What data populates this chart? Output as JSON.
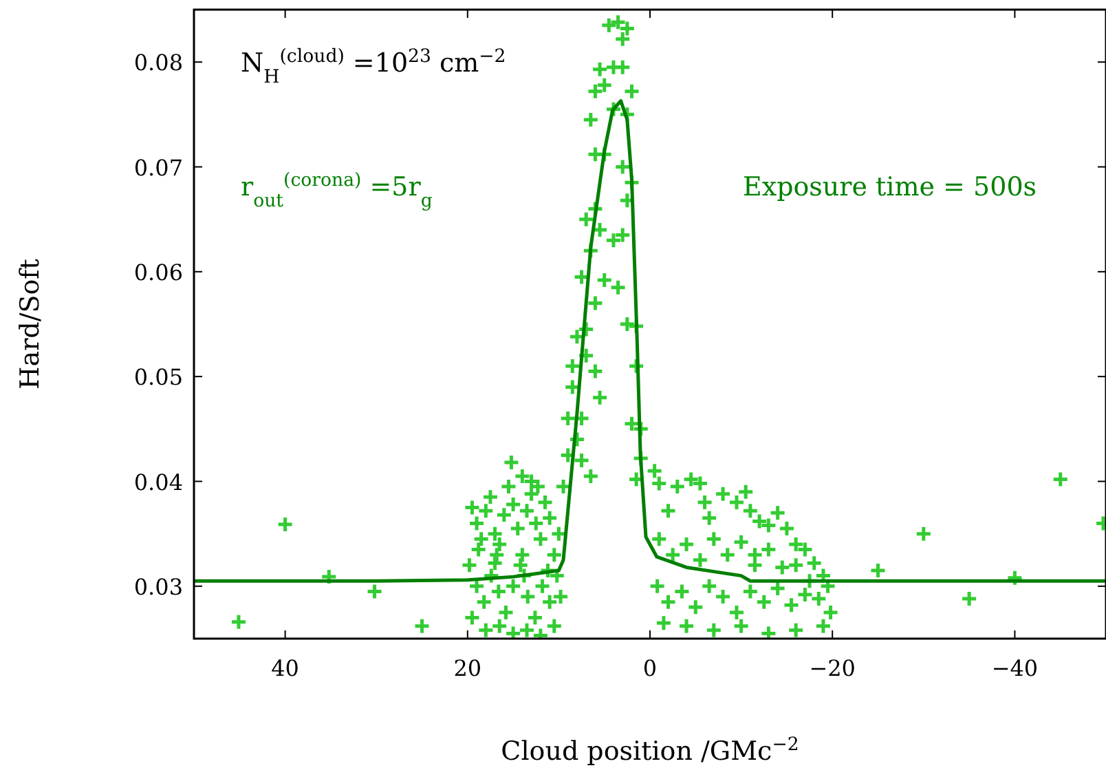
{
  "chart_data": {
    "type": "scatter",
    "xlabel": "Cloud position /GMc$^{−2}$",
    "ylabel": "Hard/Soft",
    "xlim": [
      50,
      -50
    ],
    "xticks": [
      40,
      20,
      0,
      {
        "value": -20,
        "label": "−20"
      },
      {
        "value": -40,
        "label": "−40"
      }
    ],
    "ylim": [
      0.025,
      0.085
    ],
    "yticks": [
      0.03,
      0.04,
      0.05,
      0.06,
      0.07,
      0.08
    ],
    "grid": false,
    "annotations": [
      "N$_{H}$$^{(cloud)}$ =10$^{23}$  cm$^{−2}$",
      "r$_{out}$$^{(corona)}$ =5r$_{g}$",
      "Exposure time = 500s"
    ],
    "series": [
      {
        "marker": "cross",
        "color": "#33cc33",
        "x": [
          45.1,
          40,
          35.2,
          30.2,
          25,
          -25,
          -30,
          -35,
          -40,
          -45,
          -49.7,
          4.5,
          3.5,
          2.5,
          3,
          5.5,
          4,
          3,
          5,
          6,
          2,
          4,
          2.5,
          6.5,
          5,
          6,
          3,
          2,
          2.5,
          7,
          6,
          5.5,
          4,
          3,
          6.5,
          5,
          7.5,
          3.5,
          6,
          2.5,
          7,
          8,
          1.5,
          7,
          8.5,
          1.5,
          6,
          8.5,
          5.5,
          9,
          7.5,
          2,
          1,
          8,
          9,
          7.5,
          1,
          6.5,
          1.5,
          9.5,
          19.5,
          19,
          18.5,
          18,
          17.5,
          17,
          16.5,
          16,
          15.5,
          15,
          14.5,
          14,
          13.5,
          13,
          12.5,
          12,
          11.5,
          11,
          10.5,
          10,
          19.8,
          19,
          18.2,
          17.4,
          16.6,
          15.8,
          15,
          14.2,
          13.4,
          12.6,
          11.8,
          11,
          10.2,
          19.5,
          18,
          16.5,
          15,
          13.5,
          12,
          10.5,
          17,
          14,
          15.2,
          13,
          12.3,
          16.8,
          18.8,
          11.2,
          13.8,
          9.8,
          -0.5,
          -1,
          -2,
          -3,
          -4.5,
          -5.5,
          -6.5,
          -8,
          -9.5,
          -10.5,
          -11,
          -12,
          -13,
          -14,
          -15,
          -16,
          -17,
          -18,
          -19,
          -19.5,
          -1,
          -2.5,
          -4,
          -5.5,
          -7,
          -8.5,
          -10,
          -11.5,
          -13,
          -14.5,
          -16,
          -17.5,
          -0.8,
          -2,
          -3.5,
          -5,
          -6.5,
          -8,
          -9.5,
          -11,
          -12.5,
          -14,
          -15.5,
          -17,
          -18.5,
          -19.8,
          -1.5,
          -4,
          -7,
          -10,
          -13,
          -16,
          -19,
          -6,
          -11.5
        ],
        "values": [
          0.0266,
          0.0359,
          0.0309,
          0.0295,
          0.0262,
          0.0315,
          0.035,
          0.0288,
          0.0308,
          0.0402,
          0.036,
          0.0835,
          0.0838,
          0.0832,
          0.0822,
          0.0793,
          0.0795,
          0.0795,
          0.0778,
          0.0772,
          0.0772,
          0.0755,
          0.075,
          0.0745,
          0.0712,
          0.0712,
          0.07,
          0.0685,
          0.0668,
          0.065,
          0.066,
          0.064,
          0.063,
          0.0635,
          0.062,
          0.0592,
          0.0595,
          0.0585,
          0.057,
          0.055,
          0.0545,
          0.0538,
          0.0548,
          0.052,
          0.051,
          0.051,
          0.0505,
          0.049,
          0.048,
          0.046,
          0.046,
          0.0455,
          0.045,
          0.044,
          0.0425,
          0.042,
          0.0422,
          0.0405,
          0.0402,
          0.0395,
          0.0375,
          0.036,
          0.0345,
          0.0372,
          0.0385,
          0.035,
          0.034,
          0.0368,
          0.0395,
          0.0378,
          0.0355,
          0.033,
          0.0372,
          0.0388,
          0.036,
          0.0345,
          0.038,
          0.0365,
          0.033,
          0.035,
          0.032,
          0.03,
          0.0285,
          0.031,
          0.0295,
          0.0275,
          0.03,
          0.032,
          0.029,
          0.027,
          0.03,
          0.0285,
          0.031,
          0.027,
          0.0258,
          0.0262,
          0.0255,
          0.0258,
          0.0253,
          0.0262,
          0.0322,
          0.0405,
          0.0418,
          0.04,
          0.0395,
          0.033,
          0.0335,
          0.0315,
          0.031,
          0.029,
          0.041,
          0.0398,
          0.0372,
          0.0395,
          0.0402,
          0.0398,
          0.0365,
          0.0388,
          0.038,
          0.039,
          0.0372,
          0.0362,
          0.0358,
          0.037,
          0.0355,
          0.034,
          0.0335,
          0.0322,
          0.031,
          0.03,
          0.0345,
          0.033,
          0.034,
          0.0325,
          0.0345,
          0.033,
          0.0342,
          0.032,
          0.0335,
          0.0318,
          0.032,
          0.0305,
          0.03,
          0.0285,
          0.0295,
          0.028,
          0.03,
          0.029,
          0.0275,
          0.0295,
          0.0285,
          0.0298,
          0.0282,
          0.0292,
          0.0288,
          0.0275,
          0.0265,
          0.0262,
          0.0258,
          0.0262,
          0.0255,
          0.0258,
          0.0262,
          0.038,
          0.033
        ]
      },
      {
        "type": "line",
        "color": "#007f00",
        "x": [
          50,
          30,
          20,
          15,
          10,
          9.5,
          8,
          6.5,
          5,
          4.1,
          3.2,
          2.5,
          2,
          1.4,
          1.05,
          0.45,
          -0.75,
          -4,
          -10,
          -11,
          -50
        ],
        "values": [
          0.0305,
          0.0305,
          0.0306,
          0.0309,
          0.0315,
          0.0325,
          0.0465,
          0.0623,
          0.0715,
          0.0754,
          0.0763,
          0.0745,
          0.0688,
          0.0531,
          0.0426,
          0.0347,
          0.0328,
          0.0318,
          0.031,
          0.0305,
          0.0305
        ]
      }
    ]
  }
}
